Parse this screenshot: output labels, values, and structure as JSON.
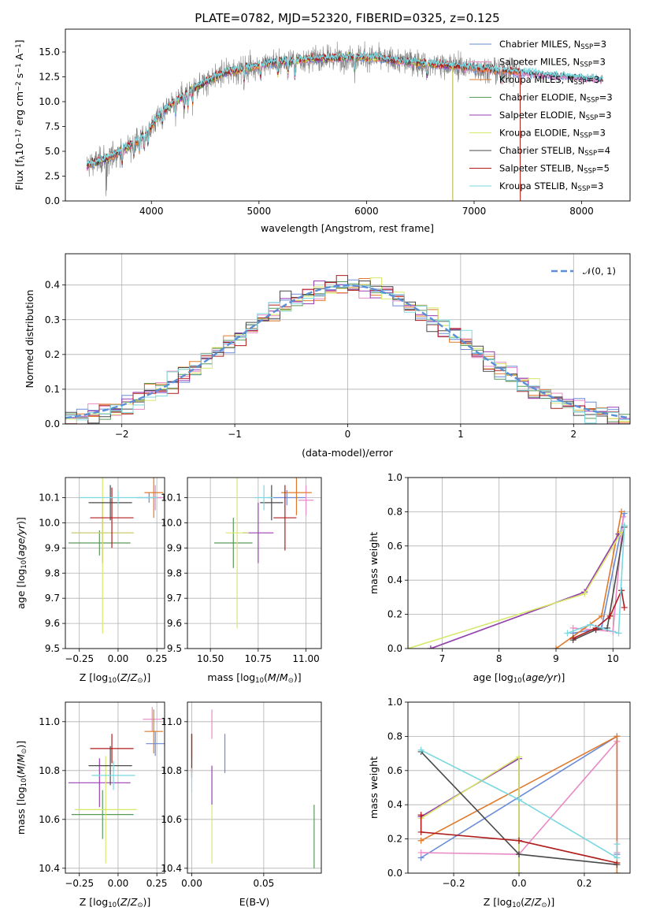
{
  "figure": {
    "title": "PLATE=0782, MJD=52320, FIBERID=0325, z=0.125"
  },
  "colors": {
    "Chabrier MILES": "#6a8bd8",
    "Salpeter MILES": "#e88ac6",
    "Kroupa MILES": "#e07a2a",
    "Chabrier ELODIE": "#5a9a5a",
    "Salpeter ELODIE": "#9b3fb5",
    "Kroupa ELODIE": "#d8e86a",
    "Chabrier STELIB": "#4a4a4a",
    "Salpeter STELIB": "#b01c1c",
    "Kroupa STELIB": "#7ad8e0",
    "gauss": "#5a8fd6",
    "grid": "#b0b0b0"
  },
  "legend_spectrum": [
    {
      "key": "Chabrier MILES",
      "text": "Chabrier MILES, N",
      "sub": "SSP",
      "rest": "=3"
    },
    {
      "key": "Salpeter MILES",
      "text": "Salpeter MILES, N",
      "sub": "SSP",
      "rest": "=3"
    },
    {
      "key": "Kroupa MILES",
      "text": "Kroupa MILES, N",
      "sub": "SSP",
      "rest": "=3"
    },
    {
      "key": "Chabrier ELODIE",
      "text": "Chabrier ELODIE, N",
      "sub": "SSP",
      "rest": "=3"
    },
    {
      "key": "Salpeter ELODIE",
      "text": "Salpeter ELODIE, N",
      "sub": "SSP",
      "rest": "=3"
    },
    {
      "key": "Kroupa ELODIE",
      "text": "Kroupa ELODIE, N",
      "sub": "SSP",
      "rest": "=3"
    },
    {
      "key": "Chabrier STELIB",
      "text": "Chabrier STELIB, N",
      "sub": "SSP",
      "rest": "=4"
    },
    {
      "key": "Salpeter STELIB",
      "text": "Salpeter STELIB, N",
      "sub": "SSP",
      "rest": "=5"
    },
    {
      "key": "Kroupa STELIB",
      "text": "Kroupa STELIB, N",
      "sub": "SSP",
      "rest": "=3"
    }
  ],
  "chart_data": [
    {
      "id": "spectrum",
      "type": "line",
      "title": "PLATE=0782, MJD=52320, FIBERID=0325, z=0.125",
      "xlabel": "wavelength [Angstrom, rest frame]",
      "ylabel": "Flux [f_λ 10^-17 erg cm^-2 s^-1 A^-1]",
      "xlim": [
        3200,
        8450
      ],
      "ylim": [
        0,
        17.3
      ],
      "xticks": [
        4000,
        5000,
        6000,
        7000,
        8000
      ],
      "yticks": [
        0.0,
        2.5,
        5.0,
        7.5,
        10.0,
        12.5,
        15.0
      ],
      "grid": false,
      "legend": "top-right",
      "continuum": {
        "x": [
          3400,
          3600,
          3800,
          3950,
          4100,
          4300,
          4500,
          4700,
          4900,
          5100,
          5300,
          5500,
          5700,
          5900,
          6100,
          6300,
          6500,
          6700,
          6900,
          7100,
          7300,
          7500,
          7700,
          7900,
          8100,
          8200
        ],
        "y": [
          3.6,
          4.3,
          5.6,
          6.8,
          9.0,
          10.6,
          12.0,
          13.0,
          13.4,
          13.9,
          14.1,
          14.3,
          14.4,
          14.5,
          14.4,
          14.1,
          13.9,
          13.7,
          13.5,
          13.3,
          13.1,
          12.9,
          12.7,
          12.5,
          12.3,
          12.2
        ]
      },
      "series_names": [
        "Chabrier MILES",
        "Salpeter MILES",
        "Kroupa MILES",
        "Chabrier ELODIE",
        "Salpeter ELODIE",
        "Kroupa ELODIE",
        "Chabrier STELIB",
        "Salpeter STELIB",
        "Kroupa STELIB"
      ]
    },
    {
      "id": "residuals",
      "type": "line",
      "xlabel": "(data-model)/error",
      "ylabel": "Normed distribution",
      "xlim": [
        -2.5,
        2.5
      ],
      "ylim": [
        0,
        0.49
      ],
      "xticks": [
        -2,
        -1,
        0,
        1,
        2
      ],
      "xtick_labels": [
        "−2",
        "−1",
        "0",
        "1",
        "2"
      ],
      "yticks": [
        0.0,
        0.1,
        0.2,
        0.3,
        0.4
      ],
      "grid": true,
      "legend": "top-right",
      "legend_label": "𝒩(0, 1)",
      "bin_width": 0.1
    },
    {
      "id": "age_vs_Z",
      "type": "scatter",
      "xlabel": "Z [log10(Z/Z⊙)]",
      "ylabel": "age [log10(age/yr)]",
      "xlim": [
        -0.34,
        0.3
      ],
      "ylim": [
        9.5,
        10.18
      ],
      "xticks": [
        -0.25,
        0.0,
        0.25
      ],
      "xtick_labels": [
        "−0.25",
        "0.00",
        "0.25"
      ],
      "yticks": [
        9.5,
        9.6,
        9.7,
        9.8,
        9.9,
        10.0,
        10.1
      ],
      "grid": true,
      "points": [
        {
          "s": "Chabrier MILES",
          "x": 0.2,
          "xe": 0.08,
          "y": 10.1,
          "ye": 0.02
        },
        {
          "s": "Salpeter MILES",
          "x": 0.24,
          "xe": 0.06,
          "y": 10.1,
          "ye": 0.05
        },
        {
          "s": "Kroupa MILES",
          "x": 0.23,
          "xe": 0.06,
          "y": 10.12,
          "ye": 0.1
        },
        {
          "s": "Chabrier ELODIE",
          "x": -0.12,
          "xe": 0.2,
          "y": 9.92,
          "ye": 0.05
        },
        {
          "s": "Salpeter ELODIE",
          "x": -0.1,
          "xe": 0.2,
          "y": 9.96,
          "ye": 0.12
        },
        {
          "s": "Kroupa ELODIE",
          "x": -0.1,
          "xe": 0.2,
          "y": 9.96,
          "ye": 0.4
        },
        {
          "s": "Chabrier STELIB",
          "x": -0.05,
          "xe": 0.14,
          "y": 10.08,
          "ye": 0.07
        },
        {
          "s": "Salpeter STELIB",
          "x": -0.04,
          "xe": 0.14,
          "y": 10.02,
          "ye": 0.12
        },
        {
          "s": "Kroupa STELIB",
          "x": 0.0,
          "xe": 0.25,
          "y": 10.1,
          "ye": 0.03
        }
      ]
    },
    {
      "id": "age_vs_mass",
      "type": "scatter",
      "xlabel": "mass [log10(M/M⊙)]",
      "ylabel": "",
      "xlim": [
        10.38,
        11.08
      ],
      "ylim": [
        9.5,
        10.18
      ],
      "xticks": [
        10.5,
        10.75,
        11.0
      ],
      "xtick_labels": [
        "10.50",
        "10.75",
        "11.00"
      ],
      "yticks": [
        9.5,
        9.6,
        9.7,
        9.8,
        9.9,
        10.0,
        10.1
      ],
      "grid": true,
      "points": [
        {
          "s": "Chabrier MILES",
          "x": 10.9,
          "xe": 0.1,
          "y": 10.1,
          "ye": 0.03
        },
        {
          "s": "Salpeter MILES",
          "x": 11.0,
          "xe": 0.04,
          "y": 10.09,
          "ye": 0.06
        },
        {
          "s": "Kroupa MILES",
          "x": 10.95,
          "xe": 0.08,
          "y": 10.12,
          "ye": 0.09
        },
        {
          "s": "Chabrier ELODIE",
          "x": 10.62,
          "xe": 0.1,
          "y": 9.92,
          "ye": 0.1
        },
        {
          "s": "Salpeter ELODIE",
          "x": 10.75,
          "xe": 0.08,
          "y": 9.96,
          "ye": 0.12
        },
        {
          "s": "Kroupa ELODIE",
          "x": 10.64,
          "xe": 0.06,
          "y": 9.96,
          "ye": 0.38
        },
        {
          "s": "Chabrier STELIB",
          "x": 10.82,
          "xe": 0.06,
          "y": 10.08,
          "ye": 0.07
        },
        {
          "s": "Salpeter STELIB",
          "x": 10.89,
          "xe": 0.06,
          "y": 10.02,
          "ye": 0.13
        },
        {
          "s": "Kroupa STELIB",
          "x": 10.78,
          "xe": 0.05,
          "y": 10.1,
          "ye": 0.05
        }
      ]
    },
    {
      "id": "weight_vs_age",
      "type": "line",
      "xlabel": "age [log10(age/yr)]",
      "ylabel": "mass weight",
      "xlim": [
        6.4,
        10.3
      ],
      "ylim": [
        0.0,
        1.0
      ],
      "xticks": [
        7,
        8,
        9,
        10
      ],
      "yticks": [
        0.0,
        0.2,
        0.4,
        0.6,
        0.8,
        1.0
      ],
      "grid": true,
      "series": [
        {
          "name": "Chabrier MILES",
          "x": [
            9.3,
            9.8,
            10.2
          ],
          "y": [
            0.09,
            0.12,
            0.79
          ]
        },
        {
          "name": "Salpeter MILES",
          "x": [
            9.3,
            10.0,
            10.18
          ],
          "y": [
            0.12,
            0.1,
            0.77
          ]
        },
        {
          "name": "Kroupa MILES",
          "x": [
            9.0,
            9.8,
            10.15
          ],
          "y": [
            0.0,
            0.19,
            0.8
          ]
        },
        {
          "name": "Chabrier ELODIE",
          "x": [
            6.8,
            9.5,
            10.1
          ],
          "y": [
            0.0,
            0.33,
            0.67
          ]
        },
        {
          "name": "Salpeter ELODIE",
          "x": [
            6.8,
            9.5,
            10.1
          ],
          "y": [
            0.0,
            0.33,
            0.67
          ]
        },
        {
          "name": "Kroupa ELODIE",
          "x": [
            6.4,
            9.5,
            10.15
          ],
          "y": [
            0.0,
            0.32,
            0.68
          ]
        },
        {
          "name": "Chabrier STELIB",
          "x": [
            9.3,
            9.7,
            9.9,
            10.2
          ],
          "y": [
            0.05,
            0.11,
            0.12,
            0.71
          ]
        },
        {
          "name": "Salpeter STELIB",
          "x": [
            9.3,
            9.7,
            9.95,
            10.15,
            10.2
          ],
          "y": [
            0.06,
            0.12,
            0.19,
            0.34,
            0.24
          ]
        },
        {
          "name": "Kroupa STELIB",
          "x": [
            9.2,
            9.6,
            10.1,
            10.2
          ],
          "y": [
            0.09,
            0.14,
            0.09,
            0.72
          ]
        }
      ]
    },
    {
      "id": "mass_vs_Z",
      "type": "scatter",
      "xlabel": "Z [log10(Z/Z⊙)]",
      "ylabel": "mass [log10(M/M⊙)]",
      "xlim": [
        -0.34,
        0.3
      ],
      "ylim": [
        10.38,
        11.08
      ],
      "xticks": [
        -0.25,
        0.0,
        0.25
      ],
      "xtick_labels": [
        "−0.25",
        "0.00",
        "0.25"
      ],
      "yticks": [
        10.4,
        10.6,
        10.8,
        11.0
      ],
      "grid": true,
      "points": [
        {
          "s": "Chabrier MILES",
          "x": 0.24,
          "xe": 0.06,
          "y": 10.91,
          "ye": 0.05
        },
        {
          "s": "Salpeter MILES",
          "x": 0.22,
          "xe": 0.06,
          "y": 11.01,
          "ye": 0.05
        },
        {
          "s": "Kroupa MILES",
          "x": 0.23,
          "xe": 0.06,
          "y": 10.96,
          "ye": 0.09
        },
        {
          "s": "Chabrier ELODIE",
          "x": -0.1,
          "xe": 0.2,
          "y": 10.62,
          "ye": 0.1
        },
        {
          "s": "Salpeter ELODIE",
          "x": -0.12,
          "xe": 0.2,
          "y": 10.75,
          "ye": 0.1
        },
        {
          "s": "Kroupa ELODIE",
          "x": -0.08,
          "xe": 0.2,
          "y": 10.64,
          "ye": 0.22
        },
        {
          "s": "Chabrier STELIB",
          "x": -0.05,
          "xe": 0.14,
          "y": 10.82,
          "ye": 0.08
        },
        {
          "s": "Salpeter STELIB",
          "x": -0.04,
          "xe": 0.14,
          "y": 10.89,
          "ye": 0.06
        },
        {
          "s": "Kroupa STELIB",
          "x": -0.03,
          "xe": 0.14,
          "y": 10.78,
          "ye": 0.06
        }
      ]
    },
    {
      "id": "mass_vs_EBV",
      "type": "scatter",
      "xlabel": "E(B-V)",
      "ylabel": "",
      "xlim": [
        -0.003,
        0.09
      ],
      "ylim": [
        10.38,
        11.08
      ],
      "xticks": [
        0.0,
        0.05
      ],
      "xtick_labels": [
        "0.00",
        "0.05"
      ],
      "yticks": [
        10.4,
        10.6,
        10.8,
        11.0
      ],
      "grid": true,
      "points": [
        {
          "s": "Chabrier MILES",
          "x": 0.023,
          "y": 10.87,
          "ye": 0.08
        },
        {
          "s": "Salpeter MILES",
          "x": 0.014,
          "y": 10.99,
          "ye": 0.06
        },
        {
          "s": "Kroupa MILES",
          "x": 0.0,
          "y": 10.9,
          "ye": 0.05
        },
        {
          "s": "Chabrier ELODIE",
          "x": 0.085,
          "y": 10.53,
          "ye": 0.13
        },
        {
          "s": "Salpeter ELODIE",
          "x": 0.014,
          "y": 10.74,
          "ye": 0.08
        },
        {
          "s": "Kroupa ELODIE",
          "x": 0.014,
          "y": 10.54,
          "ye": 0.12
        },
        {
          "s": "Chabrier STELIB",
          "x": 0.0,
          "y": 10.86,
          "ye": 0.09
        },
        {
          "s": "Salpeter STELIB",
          "x": 0.0,
          "y": 10.87,
          "ye": 0.08
        },
        {
          "s": "Kroupa STELIB",
          "x": 0.0,
          "y": 10.76,
          "ye": 0.05
        }
      ]
    },
    {
      "id": "weight_vs_Z",
      "type": "line",
      "xlabel": "Z [log10(Z/Z⊙)]",
      "ylabel": "mass weight",
      "xlim": [
        -0.34,
        0.34
      ],
      "ylim": [
        0.0,
        1.0
      ],
      "xticks": [
        -0.2,
        0.0,
        0.2
      ],
      "xtick_labels": [
        "−0.2",
        "0.0",
        "0.2"
      ],
      "yticks": [
        0.0,
        0.2,
        0.4,
        0.6,
        0.8,
        1.0
      ],
      "grid": true,
      "series": [
        {
          "name": "Chabrier MILES",
          "x": [
            -0.3,
            0.3,
            0.3
          ],
          "y": [
            0.09,
            0.8,
            0.11
          ]
        },
        {
          "name": "Salpeter MILES",
          "x": [
            -0.3,
            0.0,
            0.3,
            0.3
          ],
          "y": [
            0.12,
            0.11,
            0.77,
            0.12
          ]
        },
        {
          "name": "Kroupa MILES",
          "x": [
            -0.3,
            0.3,
            0.3
          ],
          "y": [
            0.19,
            0.8,
            0.0
          ]
        },
        {
          "name": "Chabrier ELODIE",
          "x": [
            -0.3,
            0.0,
            0.0
          ],
          "y": [
            0.33,
            0.67,
            0.0
          ]
        },
        {
          "name": "Salpeter ELODIE",
          "x": [
            -0.3,
            0.0,
            0.0
          ],
          "y": [
            0.33,
            0.67,
            0.0
          ]
        },
        {
          "name": "Kroupa ELODIE",
          "x": [
            -0.3,
            0.0,
            0.0
          ],
          "y": [
            0.32,
            0.68,
            0.0
          ]
        },
        {
          "name": "Chabrier STELIB",
          "x": [
            -0.3,
            0.0,
            0.3
          ],
          "y": [
            0.71,
            0.11,
            0.05
          ]
        },
        {
          "name": "Salpeter STELIB",
          "x": [
            -0.3,
            -0.3,
            0.0,
            0.3
          ],
          "y": [
            0.34,
            0.24,
            0.19,
            0.06
          ]
        },
        {
          "name": "Kroupa STELIB",
          "x": [
            -0.3,
            0.0,
            0.3,
            0.3
          ],
          "y": [
            0.72,
            0.43,
            0.09,
            0.17
          ]
        }
      ]
    }
  ]
}
